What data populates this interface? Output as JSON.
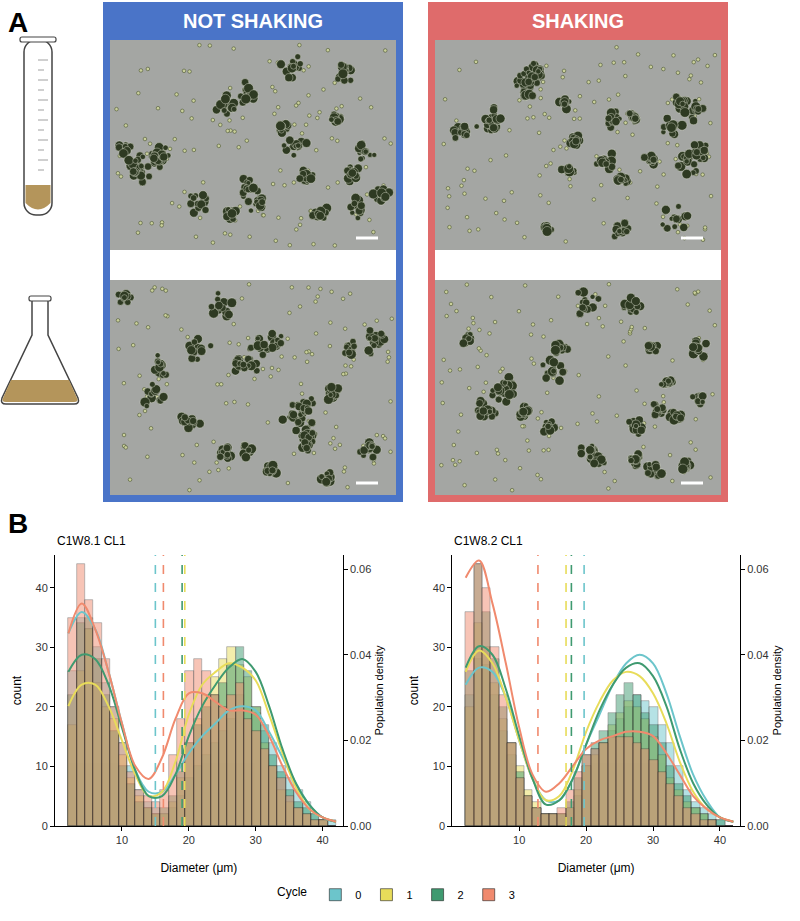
{
  "panel_a": {
    "letter": "A",
    "conditions": [
      {
        "title": "NOT SHAKING",
        "color": "#4a74c8"
      },
      {
        "title": "SHAKING",
        "color": "#df6b6b"
      }
    ]
  },
  "panel_b": {
    "letter": "B",
    "legend_title": "Cycle"
  },
  "chart_data": [
    {
      "type": "histogram",
      "title": "C1W8.1 CL1",
      "x_label": "Diameter (μm)",
      "y_label": "count",
      "y2_label": "Population density",
      "bins": [
        2,
        3.25,
        4.5,
        5.75,
        7,
        8.25,
        9.5,
        10.75,
        12,
        13.25,
        14.5,
        15.75,
        17,
        18.25,
        19.5,
        20.75,
        22,
        23.25,
        24.5,
        25.75,
        27,
        28.25,
        29.5,
        30.75,
        32,
        33.25,
        34.5,
        35.75,
        37,
        38.25,
        39.5,
        40.75,
        42
      ],
      "density_x": [
        2,
        4,
        6,
        8,
        10,
        12,
        14,
        16,
        18,
        20,
        22,
        24,
        26,
        28,
        30,
        32,
        34,
        36,
        38,
        40,
        42
      ],
      "series": [
        {
          "name": "0",
          "color": "#6cc5cb",
          "dashed_line_x": 15.0,
          "values": [
            26,
            35,
            33,
            30,
            24,
            20,
            14,
            10,
            6,
            4,
            3,
            2,
            3,
            5,
            8,
            10,
            12,
            14,
            16,
            18,
            22,
            20,
            19,
            16,
            14,
            10,
            8,
            6,
            4,
            2,
            1,
            1
          ],
          "density": [
            0.045,
            0.05,
            0.046,
            0.036,
            0.024,
            0.013,
            0.008,
            0.008,
            0.012,
            0.017,
            0.021,
            0.024,
            0.027,
            0.028,
            0.027,
            0.022,
            0.016,
            0.01,
            0.005,
            0.002,
            0.001
          ]
        },
        {
          "name": "1",
          "color": "#e8dc5a",
          "dashed_line_x": 19.4,
          "values": [
            17,
            26,
            33,
            24,
            20,
            18,
            12,
            8,
            5,
            3,
            2,
            2,
            4,
            8,
            14,
            18,
            22,
            25,
            28,
            30,
            27,
            25,
            20,
            14,
            10,
            6,
            4,
            3,
            2,
            1,
            1,
            0
          ],
          "density": [
            0.028,
            0.033,
            0.033,
            0.028,
            0.02,
            0.012,
            0.007,
            0.008,
            0.015,
            0.026,
            0.033,
            0.036,
            0.038,
            0.037,
            0.034,
            0.026,
            0.017,
            0.009,
            0.004,
            0.002,
            0.001
          ]
        },
        {
          "name": "2",
          "color": "#3f9a70",
          "dashed_line_x": 19.0,
          "values": [
            22,
            34,
            35,
            28,
            22,
            16,
            10,
            7,
            4,
            3,
            2,
            3,
            5,
            9,
            14,
            17,
            20,
            22,
            24,
            27,
            30,
            26,
            20,
            17,
            12,
            9,
            6,
            4,
            3,
            2,
            1,
            0
          ],
          "density": [
            0.036,
            0.04,
            0.039,
            0.033,
            0.023,
            0.013,
            0.007,
            0.007,
            0.012,
            0.021,
            0.028,
            0.033,
            0.037,
            0.039,
            0.036,
            0.028,
            0.018,
            0.01,
            0.005,
            0.002,
            0.001
          ]
        },
        {
          "name": "3",
          "color": "#f08a6e",
          "dashed_line_x": 16.2,
          "values": [
            35,
            44,
            38,
            34,
            28,
            20,
            14,
            9,
            6,
            5,
            4,
            6,
            12,
            18,
            26,
            28,
            26,
            22,
            20,
            22,
            24,
            18,
            16,
            13,
            10,
            8,
            5,
            3,
            2,
            1,
            1,
            0
          ],
          "density": [
            0.045,
            0.052,
            0.046,
            0.036,
            0.024,
            0.014,
            0.011,
            0.016,
            0.025,
            0.031,
            0.031,
            0.029,
            0.027,
            0.027,
            0.026,
            0.021,
            0.014,
            0.008,
            0.004,
            0.002,
            0.001
          ]
        }
      ],
      "xlim": [
        0,
        43
      ],
      "xticks": [
        10,
        20,
        30,
        40
      ],
      "ylim": [
        0,
        45.5
      ],
      "yticks": [
        0,
        10,
        20,
        30,
        40
      ],
      "y2lim": [
        0,
        0.0633
      ],
      "y2ticks": [
        {
          "value": 0,
          "label": "0.00"
        },
        {
          "value": 0.02,
          "label": "0.02"
        },
        {
          "value": 0.04,
          "label": "0.04"
        },
        {
          "value": 0.06,
          "label": "0.06"
        }
      ],
      "grid": false,
      "legend": "bottom"
    },
    {
      "type": "histogram",
      "title": "C1W8.2 CL1",
      "x_label": "Diameter (μm)",
      "y_label": "count",
      "y2_label": "Population density",
      "bins": [
        2,
        3.25,
        4.5,
        5.75,
        7,
        8.25,
        9.5,
        10.75,
        12,
        13.25,
        14.5,
        15.75,
        17,
        18.25,
        19.5,
        20.75,
        22,
        23.25,
        24.5,
        25.75,
        27,
        28.25,
        29.5,
        30.75,
        32,
        33.25,
        34.5,
        35.75,
        37,
        38.25,
        39.5,
        40.75,
        42
      ],
      "density_x": [
        2,
        4,
        6,
        8,
        10,
        12,
        14,
        16,
        18,
        20,
        22,
        24,
        26,
        28,
        30,
        32,
        34,
        36,
        38,
        40,
        42
      ],
      "series": [
        {
          "name": "0",
          "color": "#6cc5cb",
          "dashed_line_x": 19.7,
          "values": [
            22,
            28,
            27,
            22,
            16,
            12,
            8,
            5,
            3,
            2,
            2,
            2,
            3,
            5,
            10,
            13,
            14,
            16,
            18,
            20,
            22,
            21,
            20,
            17,
            14,
            10,
            6,
            4,
            3,
            2,
            1,
            0
          ],
          "density": [
            0.033,
            0.037,
            0.036,
            0.03,
            0.02,
            0.011,
            0.006,
            0.006,
            0.011,
            0.019,
            0.026,
            0.033,
            0.038,
            0.04,
            0.038,
            0.031,
            0.021,
            0.012,
            0.006,
            0.002,
            0.001
          ]
        },
        {
          "name": "1",
          "color": "#e8dc5a",
          "dashed_line_x": 17.0,
          "values": [
            20,
            34,
            30,
            24,
            18,
            14,
            10,
            6,
            4,
            2,
            2,
            2,
            3,
            6,
            10,
            12,
            14,
            17,
            19,
            21,
            20,
            18,
            15,
            12,
            8,
            6,
            4,
            3,
            2,
            1,
            0,
            0
          ],
          "density": [
            0.036,
            0.041,
            0.038,
            0.03,
            0.02,
            0.011,
            0.006,
            0.007,
            0.013,
            0.022,
            0.029,
            0.034,
            0.036,
            0.035,
            0.031,
            0.024,
            0.015,
            0.008,
            0.004,
            0.002,
            0.001
          ]
        },
        {
          "name": "2",
          "color": "#3f9a70",
          "dashed_line_x": 17.8,
          "values": [
            26,
            44,
            36,
            28,
            20,
            14,
            9,
            5,
            3,
            2,
            2,
            2,
            4,
            8,
            12,
            14,
            16,
            19,
            22,
            24,
            22,
            19,
            17,
            14,
            10,
            7,
            5,
            3,
            2,
            1,
            1,
            0
          ],
          "density": [
            0.037,
            0.042,
            0.04,
            0.032,
            0.021,
            0.011,
            0.005,
            0.006,
            0.011,
            0.019,
            0.027,
            0.033,
            0.037,
            0.038,
            0.035,
            0.028,
            0.018,
            0.01,
            0.005,
            0.002,
            0.001
          ]
        },
        {
          "name": "3",
          "color": "#f08a6e",
          "dashed_line_x": 12.8,
          "values": [
            36,
            44,
            40,
            30,
            22,
            14,
            8,
            5,
            3,
            2,
            2,
            3,
            6,
            9,
            12,
            13,
            14,
            15,
            15,
            15,
            14,
            13,
            11,
            9,
            7,
            5,
            3,
            2,
            1,
            1,
            0,
            0
          ],
          "density": [
            0.058,
            0.062,
            0.052,
            0.038,
            0.023,
            0.012,
            0.008,
            0.01,
            0.014,
            0.018,
            0.02,
            0.021,
            0.022,
            0.022,
            0.021,
            0.017,
            0.012,
            0.007,
            0.004,
            0.002,
            0.001
          ]
        }
      ],
      "xlim": [
        0,
        43
      ],
      "xticks": [
        10,
        20,
        30,
        40
      ],
      "ylim": [
        0,
        45.5
      ],
      "yticks": [
        0,
        10,
        20,
        30,
        40
      ],
      "y2lim": [
        0,
        0.0633
      ],
      "y2ticks": [
        {
          "value": 0,
          "label": "0.00"
        },
        {
          "value": 0.02,
          "label": "0.02"
        },
        {
          "value": 0.04,
          "label": "0.04"
        },
        {
          "value": 0.06,
          "label": "0.06"
        }
      ],
      "grid": false,
      "legend": "bottom"
    }
  ]
}
